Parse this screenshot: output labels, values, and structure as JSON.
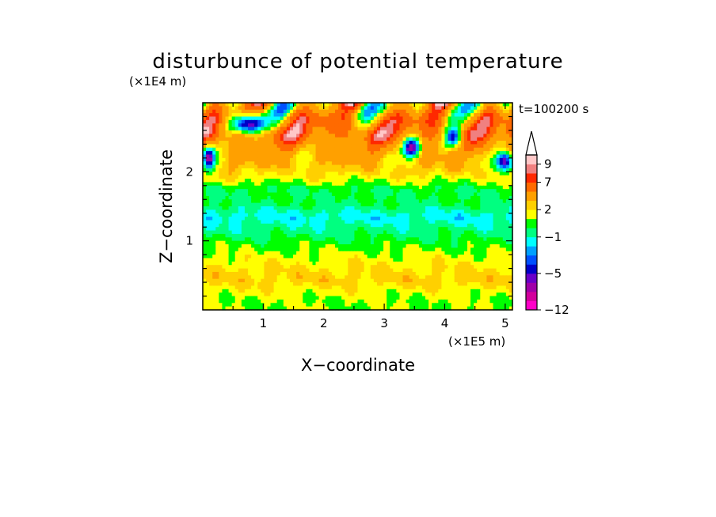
{
  "chart_data": {
    "type": "heatmap",
    "title": "disturbunce of potential temperature",
    "xlabel": "X−coordinate",
    "ylabel": "Z−coordinate",
    "x_unit": "(×1E5 m)",
    "y_unit": "(×1E4 m)",
    "time_label": "t=100200 s",
    "xlim": [
      0,
      5.12
    ],
    "ylim": [
      0,
      3.0
    ],
    "x_ticks": [
      {
        "v": 1,
        "label": "1"
      },
      {
        "v": 2,
        "label": "2"
      },
      {
        "v": 3,
        "label": "3"
      },
      {
        "v": 4,
        "label": "4"
      },
      {
        "v": 5,
        "label": "5"
      }
    ],
    "y_ticks": [
      {
        "v": 1,
        "label": "1"
      },
      {
        "v": 2,
        "label": "2"
      }
    ],
    "colorbar": {
      "levels": [
        -12,
        -10,
        -8,
        -6,
        -5,
        -4,
        -3,
        -2,
        -1,
        0,
        1,
        2,
        3,
        5,
        7,
        8,
        9,
        11
      ],
      "labels": [
        {
          "v": 9,
          "label": "9"
        },
        {
          "v": 7,
          "label": "7"
        },
        {
          "v": 2,
          "label": "2"
        },
        {
          "v": -1,
          "label": "−1"
        },
        {
          "v": -5,
          "label": "−5"
        },
        {
          "v": -12,
          "label": "−12"
        }
      ],
      "colors": [
        "#ff00c8",
        "#d2009c",
        "#a000a8",
        "#6a00c8",
        "#0000c8",
        "#0050ff",
        "#00a0ff",
        "#00ffff",
        "#00ff80",
        "#00ff00",
        "#ffff00",
        "#ffd000",
        "#ffa000",
        "#ff6a00",
        "#ff2800",
        "#f08080",
        "#ffc8c8"
      ],
      "extend": "max"
    },
    "field_description": {
      "rows_z": [
        0.15,
        0.45,
        0.75,
        0.95,
        1.15,
        1.35,
        1.55,
        1.75,
        1.95,
        2.15,
        2.35,
        2.55,
        2.75,
        2.9
      ],
      "representative_values": [
        1.0,
        2.5,
        1.5,
        0.5,
        -0.5,
        -1.5,
        0.0,
        0.0,
        2.0,
        3.0,
        4.0,
        6.0,
        5.0,
        3.0
      ]
    }
  }
}
